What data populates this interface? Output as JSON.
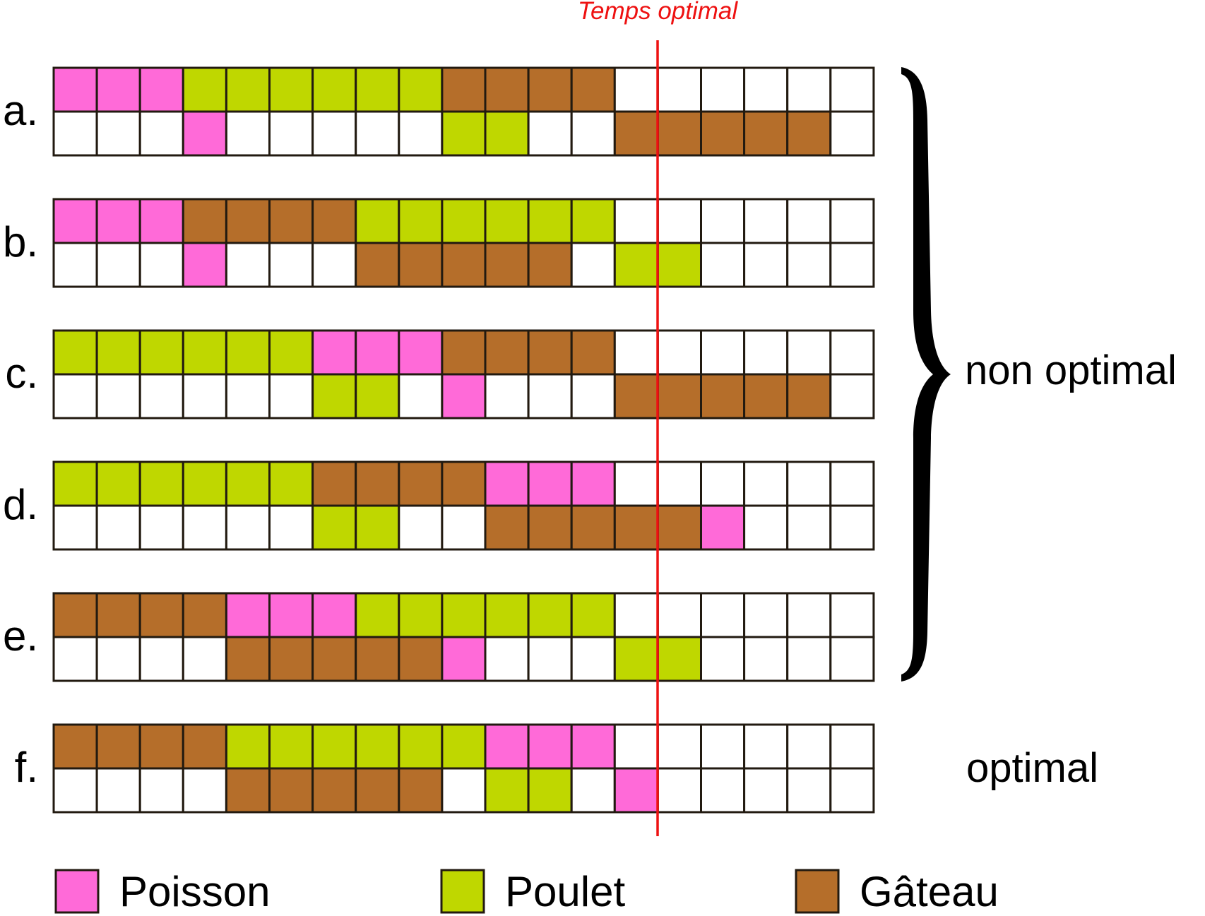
{
  "optimal_line_label": "Temps optimal",
  "colors": {
    "P": "#ff6ad8",
    "C": "#bfd700",
    "G": "#b56e2a",
    "empty": "#ffffff",
    "grid": "#221a10",
    "line": "#ee1111",
    "text": "#000000"
  },
  "grid_columns": 19,
  "rows": [
    {
      "label": "a.",
      "top": "PPPCCCCCCGGGG......",
      "bottom": "...P.....CC..GGGGG."
    },
    {
      "label": "b.",
      "top": "PPPGGGGCCCCCC......",
      "bottom": "...P...GGGGG.CC...."
    },
    {
      "label": "c.",
      "top": "CCCCCCPPPGGGG......",
      "bottom": "......CC.P...GGGGG."
    },
    {
      "label": "d.",
      "top": "CCCCCCGGGGPPP......",
      "bottom": "......CC..GGGGGP..."
    },
    {
      "label": "e.",
      "top": "GGGGPPPCCCCCC......",
      "bottom": "....GGGGGP...CC...."
    },
    {
      "label": "f.",
      "top": "GGGGCCCCCCPPP......",
      "bottom": "....GGGGG.CC.P....."
    }
  ],
  "brace_label": "non optimal",
  "optimal_label": "optimal",
  "legend": [
    {
      "key": "P",
      "label": "Poisson"
    },
    {
      "key": "C",
      "label": "Poulet"
    },
    {
      "key": "G",
      "label": "Gâteau"
    }
  ]
}
